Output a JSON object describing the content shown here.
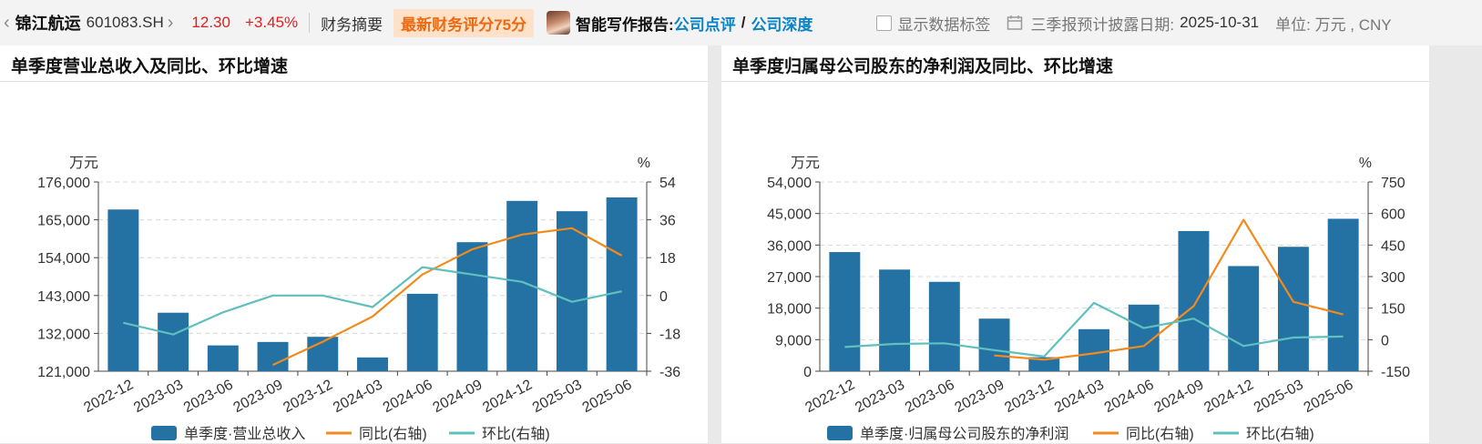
{
  "header": {
    "company": "锦江航运",
    "code": "601083.SH",
    "price": "12.30",
    "change": "+3.45%",
    "summary_link": "财务摘要",
    "score_badge": "最新财务评分75分",
    "ai_report_label": "智能写作报告:",
    "ai_link_1": "公司点评",
    "ai_slash": "/",
    "ai_link_2": "公司深度",
    "show_labels": "显示数据标签",
    "disclosure_label": "三季报预计披露日期:",
    "disclosure_date": "2025-10-31",
    "unit": "单位: 万元 , CNY"
  },
  "panels": [
    {
      "title": "单季度营业总收入及同比、环比增速"
    },
    {
      "title": "单季度归属母公司股东的净利润及同比、环比增速"
    }
  ],
  "colors": {
    "bar": "#2472a4",
    "yoy": "#f28a1c",
    "qoq": "#5fc0bd",
    "grid": "#d8d8d8"
  },
  "chart_data": [
    {
      "type": "bar",
      "categories": [
        "2022-12",
        "2023-03",
        "2023-06",
        "2023-09",
        "2023-12",
        "2024-03",
        "2024-06",
        "2024-09",
        "2024-12",
        "2025-03",
        "2025-06"
      ],
      "y_left_unit": "万元",
      "y_right_unit": "%",
      "y_left_ticks": [
        "121,000",
        "132,000",
        "143,000",
        "154,000",
        "165,000",
        "176,000"
      ],
      "y_right_ticks": [
        "-36",
        "-18",
        "0",
        "18",
        "36",
        "54"
      ],
      "ylim_left": [
        121000,
        176000
      ],
      "ylim_right": [
        -36,
        54
      ],
      "series": [
        {
          "name": "单季度·营业总收入",
          "kind": "bar",
          "axis": "left",
          "values": [
            168000,
            138000,
            128500,
            129500,
            131000,
            125000,
            143500,
            158500,
            170500,
            167500,
            171500
          ]
        },
        {
          "name": "同比(右轴)",
          "kind": "line",
          "axis": "right",
          "values": [
            null,
            null,
            null,
            -33,
            -22,
            -10,
            10,
            22,
            29,
            32,
            19
          ]
        },
        {
          "name": "环比(右轴)",
          "kind": "line",
          "axis": "right",
          "values": [
            -13,
            -18.5,
            -8,
            0,
            0,
            -5.5,
            13.5,
            10,
            6.5,
            -3,
            2
          ]
        }
      ],
      "legend_position": "bottom",
      "grid": true
    },
    {
      "type": "bar",
      "categories": [
        "2022-12",
        "2023-03",
        "2023-06",
        "2023-09",
        "2023-12",
        "2024-03",
        "2024-06",
        "2024-09",
        "2024-12",
        "2025-03",
        "2025-06"
      ],
      "y_left_unit": "万元",
      "y_right_unit": "%",
      "y_left_ticks": [
        "0",
        "9,000",
        "18,000",
        "27,000",
        "36,000",
        "45,000",
        "54,000"
      ],
      "y_right_ticks": [
        "-150",
        "0",
        "150",
        "300",
        "450",
        "600",
        "750"
      ],
      "ylim_left": [
        0,
        54000
      ],
      "ylim_right": [
        -150,
        750
      ],
      "series": [
        {
          "name": "单季度·归属母公司股东的净利润",
          "kind": "bar",
          "axis": "left",
          "values": [
            34000,
            29000,
            25500,
            15000,
            4000,
            12000,
            19000,
            40000,
            30000,
            35500,
            43500
          ]
        },
        {
          "name": "同比(右轴)",
          "kind": "line",
          "axis": "right",
          "values": [
            null,
            null,
            null,
            -75,
            -95,
            -65,
            -30,
            160,
            570,
            180,
            120
          ]
        },
        {
          "name": "环比(右轴)",
          "kind": "line",
          "axis": "right",
          "values": [
            -35,
            -20,
            -17,
            -50,
            -80,
            175,
            55,
            100,
            -30,
            10,
            15
          ]
        }
      ],
      "legend_position": "bottom",
      "grid": true
    }
  ]
}
